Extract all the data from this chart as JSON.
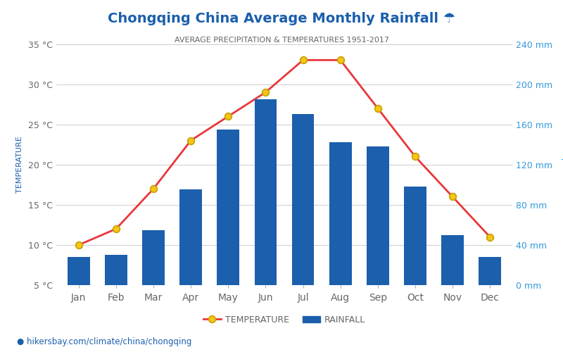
{
  "title": "Chongqing China Average Monthly Rainfall ☂",
  "subtitle": "AVERAGE PRECIPITATION & TEMPERATURES 1951-2017",
  "months": [
    "Jan",
    "Feb",
    "Mar",
    "Apr",
    "May",
    "Jun",
    "Jul",
    "Aug",
    "Sep",
    "Oct",
    "Nov",
    "Dec"
  ],
  "temperature": [
    10,
    12,
    17,
    23,
    26,
    29,
    33,
    33,
    27,
    21,
    16,
    11
  ],
  "rainfall": [
    28,
    30,
    55,
    95,
    155,
    185,
    170,
    142,
    138,
    98,
    50,
    28
  ],
  "temp_ylim": [
    5,
    35
  ],
  "rain_ylim": [
    0,
    240
  ],
  "temp_yticks": [
    5,
    10,
    15,
    20,
    25,
    30,
    35
  ],
  "rain_yticks": [
    0,
    40,
    80,
    120,
    160,
    200,
    240
  ],
  "bar_color": "#1b5fad",
  "line_color": "#e8373a",
  "line_marker_facecolor": "#f5c518",
  "line_marker_edgecolor": "#c8a000",
  "title_color": "#1b5fad",
  "subtitle_color": "#666666",
  "ylabel_left": "TEMPERATURE",
  "ylabel_right": "Precipitation",
  "left_tick_color": "#666666",
  "right_tick_color": "#3399dd",
  "background_color": "#ffffff",
  "grid_color": "#cccccc",
  "url_text": "hikersbay.com/climate/china/chongqing",
  "url_color": "#1b5fad",
  "legend_temp": "TEMPERATURE",
  "legend_rain": "RAINFALL"
}
